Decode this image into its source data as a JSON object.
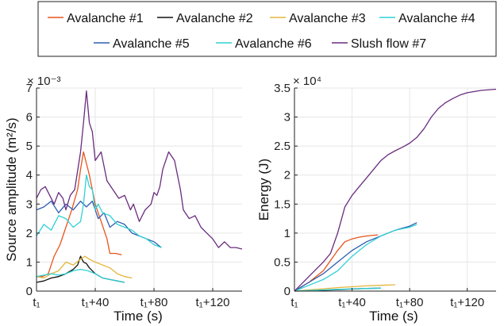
{
  "legend": [
    {
      "label": "Avalanche #1",
      "color": "#e8541d"
    },
    {
      "label": "Avalanche #2",
      "color": "#111111"
    },
    {
      "label": "Avalanche #3",
      "color": "#e3b53c"
    },
    {
      "label": "Avalanche #4",
      "color": "#2fd0d6"
    },
    {
      "label": "Avalanche #5",
      "color": "#2f5db0"
    },
    {
      "label": "Avalanche #6",
      "color": "#2fd0d6"
    },
    {
      "label": "Slush flow #7",
      "color": "#6a2c7e"
    }
  ],
  "chart_data": [
    {
      "type": "line",
      "xlabel": "Time (s)",
      "ylabel": "Source amplitude (m²/s)",
      "y_exponent": "× 10⁻³",
      "xlim": [
        0,
        140
      ],
      "ylim": [
        0,
        7
      ],
      "xticks": [
        {
          "v": 0,
          "label": "t₁"
        },
        {
          "v": 40,
          "label": "t₁+40"
        },
        {
          "v": 80,
          "label": "t₁+80"
        },
        {
          "v": 120,
          "label": "t₁+120"
        }
      ],
      "yticks": [
        0,
        1,
        2,
        3,
        4,
        5,
        6,
        7
      ],
      "grid": true,
      "series": [
        {
          "name": "Avalanche #1",
          "color": "#e8541d",
          "x": [
            0,
            4,
            8,
            12,
            16,
            20,
            24,
            28,
            30,
            32,
            34,
            36,
            38,
            40,
            44,
            48,
            50,
            54,
            58
          ],
          "y": [
            0.5,
            0.5,
            0.6,
            1.2,
            1.6,
            2.2,
            2.8,
            3.5,
            4.2,
            4.8,
            4.4,
            4.0,
            3.5,
            3.0,
            2.4,
            1.8,
            1.3,
            1.3,
            1.25
          ]
        },
        {
          "name": "Avalanche #2",
          "color": "#111111",
          "x": [
            0,
            5,
            10,
            15,
            20,
            25,
            28,
            30,
            32,
            34,
            36,
            40,
            45,
            50,
            55,
            60
          ],
          "y": [
            0.3,
            0.35,
            0.45,
            0.5,
            0.6,
            0.75,
            0.9,
            1.2,
            1.0,
            0.95,
            0.8,
            0.6,
            0.45,
            0.4,
            0.35,
            0.3
          ]
        },
        {
          "name": "Avalanche #3",
          "color": "#e3b53c",
          "x": [
            0,
            5,
            10,
            15,
            20,
            25,
            30,
            33,
            36,
            40,
            45,
            50,
            55,
            60,
            65
          ],
          "y": [
            0.5,
            0.45,
            0.6,
            0.7,
            1.0,
            0.9,
            1.1,
            1.2,
            1.1,
            1.0,
            0.9,
            0.8,
            0.6,
            0.5,
            0.45
          ]
        },
        {
          "name": "Avalanche #4",
          "color": "#2fd0d6",
          "x": [
            0,
            5,
            10,
            15,
            20,
            25,
            30,
            35,
            40,
            45,
            50,
            55,
            60
          ],
          "y": [
            0.5,
            0.55,
            0.6,
            0.55,
            0.6,
            0.7,
            0.75,
            0.7,
            0.6,
            0.45,
            0.4,
            0.35,
            0.3
          ]
        },
        {
          "name": "Avalanche #5",
          "color": "#2f5db0",
          "x": [
            0,
            5,
            10,
            15,
            20,
            25,
            30,
            34,
            38,
            42,
            46,
            50,
            55,
            60,
            65,
            70,
            75,
            80,
            85
          ],
          "y": [
            2.8,
            2.9,
            3.1,
            2.7,
            3.0,
            2.8,
            3.1,
            2.9,
            3.1,
            2.5,
            2.7,
            2.2,
            2.4,
            2.3,
            2.0,
            1.9,
            1.8,
            1.7,
            1.5
          ]
        },
        {
          "name": "Avalanche #6",
          "color": "#2fd0d6",
          "x": [
            0,
            5,
            10,
            15,
            20,
            25,
            30,
            32,
            34,
            36,
            38,
            40,
            42,
            45,
            50,
            55,
            60,
            65,
            70,
            75,
            80,
            85
          ],
          "y": [
            1.9,
            2.3,
            2.1,
            2.6,
            2.5,
            2.2,
            2.4,
            3.0,
            4.0,
            3.6,
            3.5,
            2.8,
            3.0,
            2.7,
            2.6,
            2.3,
            2.2,
            2.1,
            1.9,
            1.8,
            1.6,
            1.5
          ]
        },
        {
          "name": "Slush flow #7",
          "color": "#6a2c7e",
          "x": [
            0,
            3,
            6,
            9,
            12,
            15,
            18,
            20,
            23,
            26,
            30,
            32,
            34,
            36,
            38,
            40,
            44,
            48,
            52,
            56,
            60,
            64,
            66,
            70,
            74,
            78,
            80,
            82,
            84,
            86,
            90,
            94,
            98,
            100,
            104,
            108,
            112,
            116,
            120,
            124,
            128,
            132,
            136,
            140
          ],
          "y": [
            3.2,
            3.5,
            3.6,
            3.3,
            3.0,
            3.4,
            3.2,
            2.8,
            3.3,
            3.5,
            4.8,
            5.8,
            6.9,
            5.8,
            5.5,
            4.5,
            4.8,
            3.8,
            3.5,
            3.2,
            3.3,
            2.8,
            3.0,
            2.4,
            2.8,
            3.0,
            3.4,
            3.3,
            3.6,
            4.2,
            4.8,
            4.5,
            3.5,
            2.8,
            2.5,
            2.6,
            2.2,
            2.0,
            1.8,
            1.5,
            1.7,
            1.5,
            1.5,
            1.45
          ]
        }
      ]
    },
    {
      "type": "line",
      "xlabel": "Time (s)",
      "ylabel": "Energy (J)",
      "y_exponent": "× 10⁴",
      "xlim": [
        0,
        140
      ],
      "ylim": [
        0,
        3.5
      ],
      "xticks": [
        {
          "v": 0,
          "label": "t₁"
        },
        {
          "v": 40,
          "label": "t₁+40"
        },
        {
          "v": 80,
          "label": "t₁+80"
        },
        {
          "v": 120,
          "label": "t₁+120"
        }
      ],
      "yticks": [
        0,
        0.5,
        1,
        1.5,
        2,
        2.5,
        3,
        3.5
      ],
      "grid": true,
      "series": [
        {
          "name": "Avalanche #1",
          "color": "#e8541d",
          "x": [
            0,
            10,
            20,
            30,
            35,
            40,
            45,
            50,
            58
          ],
          "y": [
            0,
            0.15,
            0.35,
            0.7,
            0.85,
            0.9,
            0.93,
            0.95,
            0.97
          ]
        },
        {
          "name": "Avalanche #2",
          "color": "#111111",
          "x": [
            0,
            10,
            20,
            30,
            40,
            50,
            60
          ],
          "y": [
            0,
            0.005,
            0.015,
            0.025,
            0.035,
            0.045,
            0.05
          ]
        },
        {
          "name": "Avalanche #3",
          "color": "#e3b53c",
          "x": [
            0,
            10,
            20,
            30,
            40,
            50,
            60,
            70
          ],
          "y": [
            0,
            0.02,
            0.04,
            0.06,
            0.075,
            0.09,
            0.1,
            0.11
          ]
        },
        {
          "name": "Avalanche #4",
          "color": "#2fd0d6",
          "x": [
            0,
            10,
            20,
            30,
            40,
            50,
            60
          ],
          "y": [
            0,
            0.01,
            0.02,
            0.03,
            0.04,
            0.045,
            0.05
          ]
        },
        {
          "name": "Avalanche #5",
          "color": "#2f5db0",
          "x": [
            0,
            10,
            20,
            30,
            40,
            50,
            60,
            70,
            80,
            85
          ],
          "y": [
            0,
            0.15,
            0.3,
            0.5,
            0.7,
            0.85,
            0.95,
            1.05,
            1.12,
            1.18
          ]
        },
        {
          "name": "Avalanche #6",
          "color": "#2fd0d6",
          "x": [
            0,
            10,
            20,
            30,
            40,
            50,
            60,
            70,
            80,
            85
          ],
          "y": [
            0,
            0.1,
            0.2,
            0.35,
            0.6,
            0.8,
            0.95,
            1.05,
            1.1,
            1.15
          ]
        },
        {
          "name": "Slush flow #7",
          "color": "#6a2c7e",
          "x": [
            0,
            10,
            20,
            25,
            30,
            35,
            40,
            45,
            50,
            55,
            60,
            65,
            70,
            75,
            80,
            85,
            90,
            95,
            100,
            105,
            110,
            115,
            120,
            130,
            140
          ],
          "y": [
            0,
            0.25,
            0.5,
            0.65,
            1.0,
            1.45,
            1.65,
            1.8,
            1.95,
            2.1,
            2.25,
            2.35,
            2.42,
            2.48,
            2.55,
            2.65,
            2.8,
            3.0,
            3.15,
            3.25,
            3.32,
            3.38,
            3.42,
            3.46,
            3.48
          ]
        }
      ]
    }
  ]
}
